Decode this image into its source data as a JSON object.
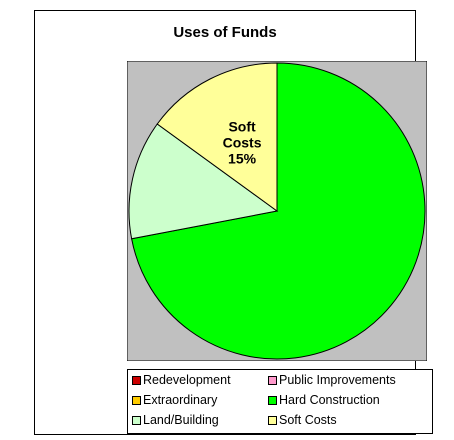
{
  "chart_data": {
    "type": "pie",
    "title": "Uses of Funds",
    "start_angle_deg": 0,
    "direction": "clockwise",
    "plot_background": "#c0c0c0",
    "slices": [
      {
        "name": "Redevelopment",
        "value": 0,
        "color": "#cc0000"
      },
      {
        "name": "Public Improvements",
        "value": 0,
        "color": "#ff99cc"
      },
      {
        "name": "Extraordinary",
        "value": 0,
        "color": "#ffcc00"
      },
      {
        "name": "Hard Construction",
        "value": 72,
        "color": "#00ff00"
      },
      {
        "name": "Land/Building",
        "value": 13,
        "color": "#ccffcc"
      },
      {
        "name": "Soft Costs",
        "value": 15,
        "color": "#ffff99"
      }
    ],
    "data_labels": [
      {
        "slice": "Soft Costs",
        "lines": [
          "Soft",
          "Costs",
          "15%"
        ]
      }
    ],
    "legend_position": "bottom"
  }
}
